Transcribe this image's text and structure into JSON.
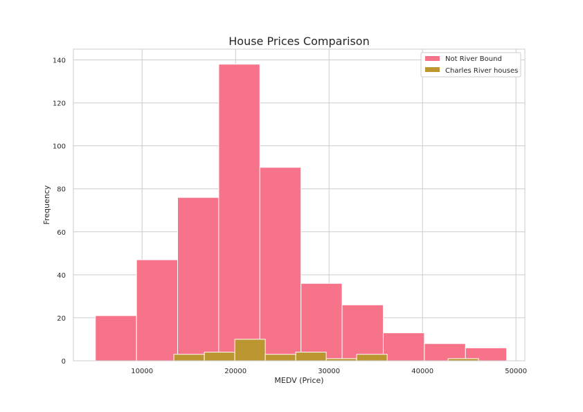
{
  "chart_data": {
    "type": "bar",
    "title": "House Prices Comparison",
    "xlabel": "MEDV (Price)",
    "ylabel": "Frequency",
    "xlim": [
      2650,
      50950
    ],
    "ylim": [
      0,
      145
    ],
    "x_ticks": [
      10000,
      20000,
      30000,
      40000,
      50000
    ],
    "y_ticks": [
      0,
      20,
      40,
      60,
      80,
      100,
      120,
      140
    ],
    "grid": true,
    "legend_position": "top-right",
    "series": [
      {
        "name": "Not River Bound",
        "color": "#f7738a",
        "bin_edges": [
          5000,
          9400,
          13800,
          18200,
          22600,
          27000,
          31400,
          35800,
          40200,
          44600,
          49000
        ],
        "values": [
          21,
          47,
          76,
          138,
          90,
          36,
          26,
          13,
          8,
          6
        ]
      },
      {
        "name": "Charles River houses",
        "color": "#bb9631",
        "bin_edges": [
          13400,
          16660,
          19920,
          23180,
          26440,
          29700,
          32960,
          36220,
          39480,
          42740,
          46000
        ],
        "values": [
          3,
          4,
          10,
          3,
          4,
          1,
          3,
          0,
          0,
          1
        ]
      }
    ]
  }
}
